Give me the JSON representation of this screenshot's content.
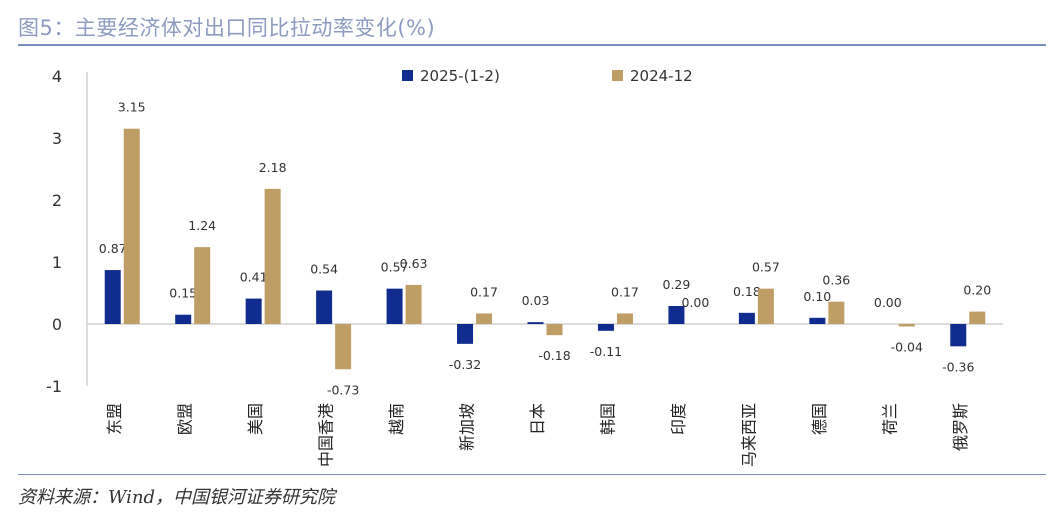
{
  "title": "图5：主要经济体对出口同比拉动率变化(%)",
  "source": "资料来源：Wind，中国银河证券研究院",
  "colors": {
    "series1": "#102c8e",
    "series2": "#bf9e66",
    "rule": "#7d8fc0",
    "title": "#8e9bc2"
  },
  "chart_data": {
    "type": "bar",
    "categories": [
      "东盟",
      "欧盟",
      "美国",
      "中国香港",
      "越南",
      "新加坡",
      "日本",
      "韩国",
      "印度",
      "马来西亚",
      "德国",
      "荷兰",
      "俄罗斯"
    ],
    "series": [
      {
        "name": "2025-(1-2)",
        "values": [
          0.87,
          0.15,
          0.41,
          0.54,
          0.57,
          -0.32,
          0.03,
          -0.11,
          0.29,
          0.18,
          0.1,
          0.0,
          -0.36
        ],
        "labels": [
          "0.87",
          "0.15",
          "0.41",
          "0.54",
          "0.57",
          "-0.32",
          "0.03",
          "-0.11",
          "0.29",
          "0.18",
          "0.10",
          "0.00",
          "-0.36"
        ]
      },
      {
        "name": "2024-12",
        "values": [
          3.15,
          1.24,
          2.18,
          -0.73,
          0.63,
          0.17,
          -0.18,
          0.17,
          0.0,
          0.57,
          0.36,
          -0.04,
          0.2
        ],
        "labels": [
          "3.15",
          "1.24",
          "2.18",
          "-0.73",
          "0.63",
          "0.17",
          "-0.18",
          "0.17",
          "0.00",
          "0.57",
          "0.36",
          "-0.04",
          "0.20"
        ]
      }
    ],
    "ylim": [
      -1,
      4
    ],
    "yticks": [
      "-1",
      "0",
      "1",
      "2",
      "3",
      "4"
    ],
    "legend": "top-center",
    "grid": false
  }
}
